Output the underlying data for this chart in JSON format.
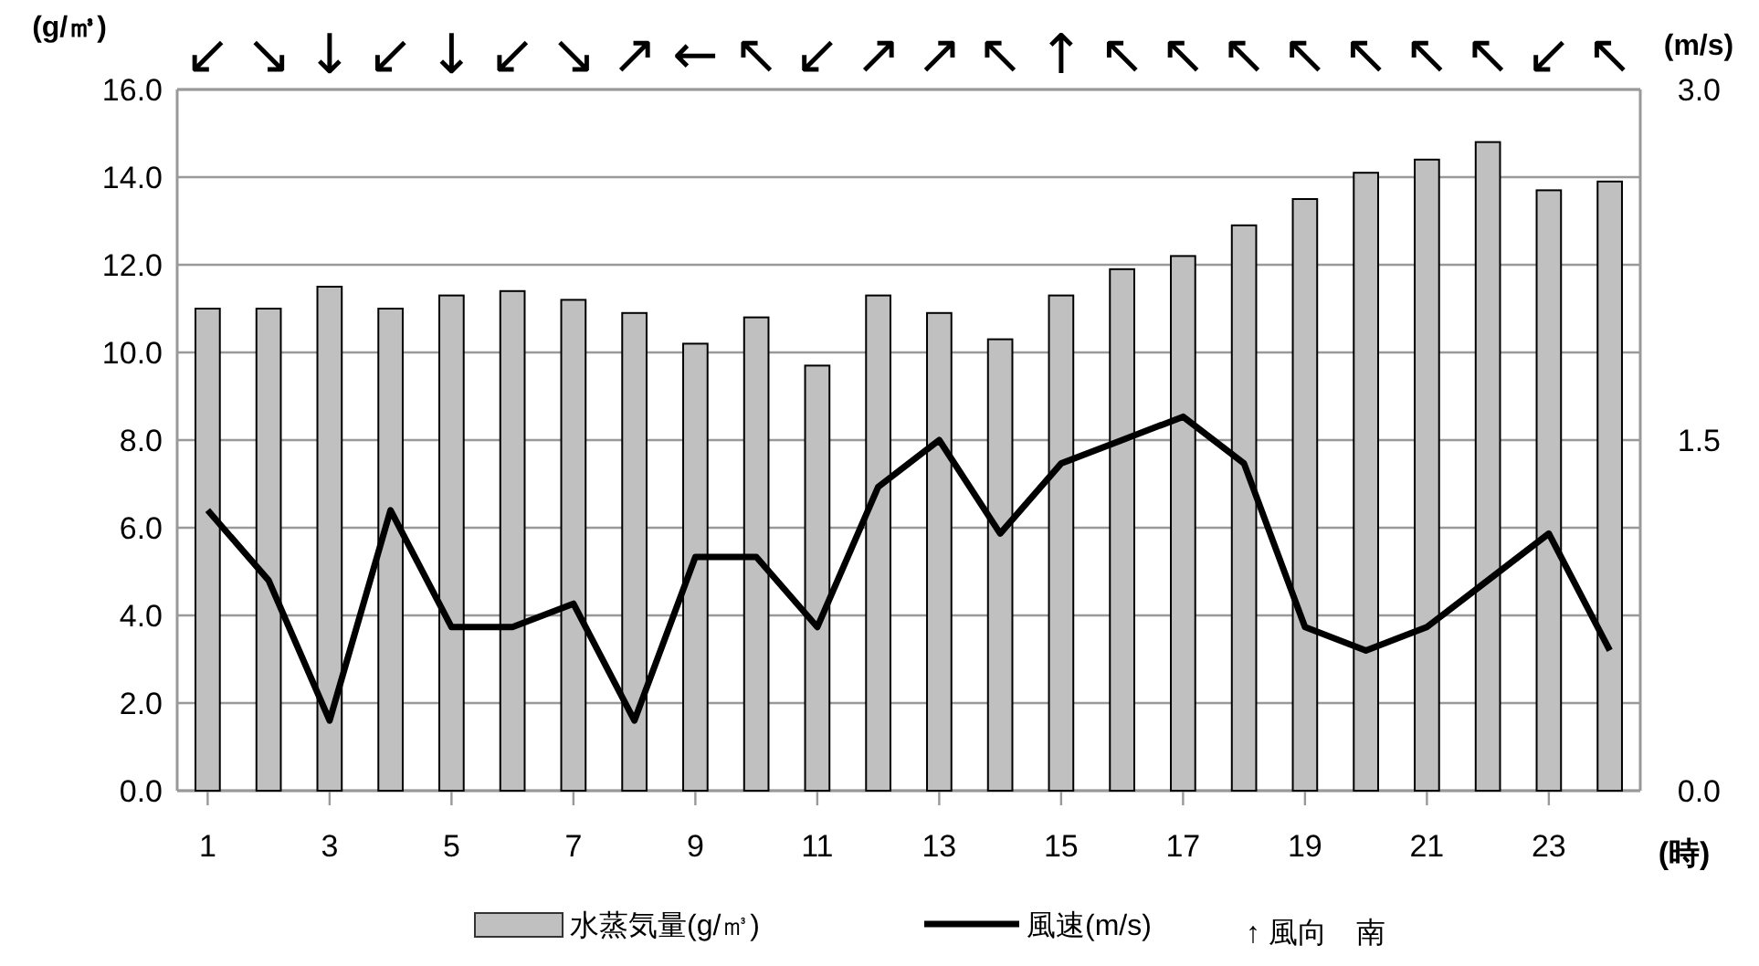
{
  "chart_data": {
    "type": "bar",
    "xlabel": "(時)",
    "ylabel": "(g/㎥)",
    "y2label": "(m/s)",
    "x": [
      1,
      2,
      3,
      4,
      5,
      6,
      7,
      8,
      9,
      10,
      11,
      12,
      13,
      14,
      15,
      16,
      17,
      18,
      19,
      20,
      21,
      22,
      23,
      24
    ],
    "xlim": [
      0.5,
      24.5
    ],
    "xticks": [
      1,
      3,
      5,
      7,
      9,
      11,
      13,
      15,
      17,
      19,
      21,
      23
    ],
    "ylim": [
      0,
      16
    ],
    "yticks": [
      {
        "value": 0,
        "label": "0.0"
      },
      {
        "value": 2,
        "label": "2.0"
      },
      {
        "value": 4,
        "label": "4.0"
      },
      {
        "value": 6,
        "label": "6.0"
      },
      {
        "value": 8,
        "label": "8.0"
      },
      {
        "value": 10,
        "label": "10.0"
      },
      {
        "value": 12,
        "label": "12.0"
      },
      {
        "value": 14,
        "label": "14.0"
      },
      {
        "value": 16,
        "label": "16.0"
      }
    ],
    "y2lim": [
      0,
      3
    ],
    "y2ticks": [
      {
        "value": 0,
        "label": "0.0"
      },
      {
        "value": 1.5,
        "label": "1.5"
      },
      {
        "value": 3,
        "label": "3.0"
      }
    ],
    "grid": "y",
    "legend": "bottom",
    "series": [
      {
        "name": "水蒸気量(g/㎥)",
        "color": "#c0c0c0",
        "values": [
          11.0,
          11.0,
          11.5,
          11.0,
          11.3,
          11.4,
          11.2,
          10.9,
          10.2,
          10.8,
          9.7,
          11.3,
          10.9,
          10.3,
          11.3,
          11.9,
          12.2,
          12.9,
          13.5,
          14.1,
          14.4,
          14.8,
          13.7,
          13.9
        ]
      },
      {
        "name": "風速(m/s)",
        "type": "line",
        "axis": "y2",
        "color": "#000000",
        "line_style": "solid",
        "marker": "none",
        "values": [
          1.2,
          0.9,
          0.3,
          1.2,
          0.7,
          0.7,
          0.8,
          0.3,
          1.0,
          1.0,
          0.7,
          1.3,
          1.5,
          1.1,
          1.4,
          1.5,
          1.6,
          1.4,
          0.7,
          0.6,
          0.7,
          0.9,
          1.1,
          0.6
        ]
      }
    ],
    "annotations": [
      "↙",
      "↘",
      "↓",
      "↙",
      "↓",
      "↙",
      "↘",
      "↗",
      "←",
      "↖",
      "↙",
      "↗",
      "↗",
      "↖",
      "↑",
      "↖",
      "↖",
      "↖",
      "↖",
      "↖",
      "↖",
      "↖",
      "↙",
      "↖",
      "↑ 風向　南"
    ]
  }
}
